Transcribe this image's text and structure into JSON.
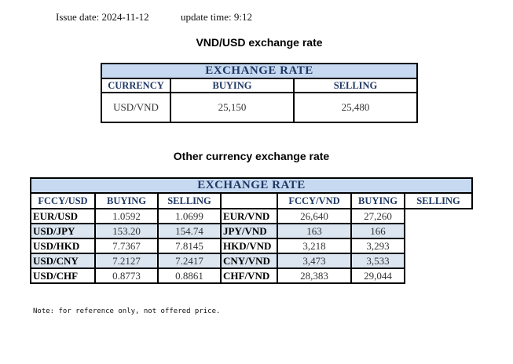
{
  "header": {
    "issue_date_label": "Issue date:",
    "issue_date": "2024-11-12",
    "update_time_label": "update time:",
    "update_time": "9:12"
  },
  "vnd_usd": {
    "title": "VND/USD exchange rate",
    "table_title": "EXCHANGE RATE",
    "columns": [
      "CURRENCY",
      "BUYING",
      "SELLING"
    ],
    "row": {
      "currency": "USD/VND",
      "buying": "25,150",
      "selling": "25,480"
    }
  },
  "other": {
    "title": "Other currency exchange rate",
    "table_title": "EXCHANGE  RATE",
    "left_columns": [
      "FCCY/USD",
      "BUYING",
      "SELLING"
    ],
    "right_columns": [
      "FCCY/VND",
      "BUYING",
      "SELLING"
    ],
    "rows": [
      {
        "l": "EUR/USD",
        "lb": "1.0592",
        "ls": "1.0699",
        "r": "EUR/VND",
        "rb": "26,640",
        "rs": "27,260"
      },
      {
        "l": "USD/JPY",
        "lb": "153.20",
        "ls": "154.74",
        "r": "JPY/VND",
        "rb": "163",
        "rs": "166"
      },
      {
        "l": "USD/HKD",
        "lb": "7.7367",
        "ls": "7.8145",
        "r": "HKD/VND",
        "rb": "3,218",
        "rs": "3,293"
      },
      {
        "l": "USD/CNY",
        "lb": "7.2127",
        "ls": "7.2417",
        "r": "CNY/VND",
        "rb": "3,473",
        "rs": "3,533"
      },
      {
        "l": "USD/CHF",
        "lb": "0.8773",
        "ls": "0.8861",
        "r": "CHF/VND",
        "rb": "28,383",
        "rs": "29,044"
      }
    ]
  },
  "note": "Note: for reference only, not offered price.",
  "colors": {
    "header_bg": "#c6d9f1",
    "header_text": "#1f3864",
    "alt_row": "#dce6f1"
  }
}
